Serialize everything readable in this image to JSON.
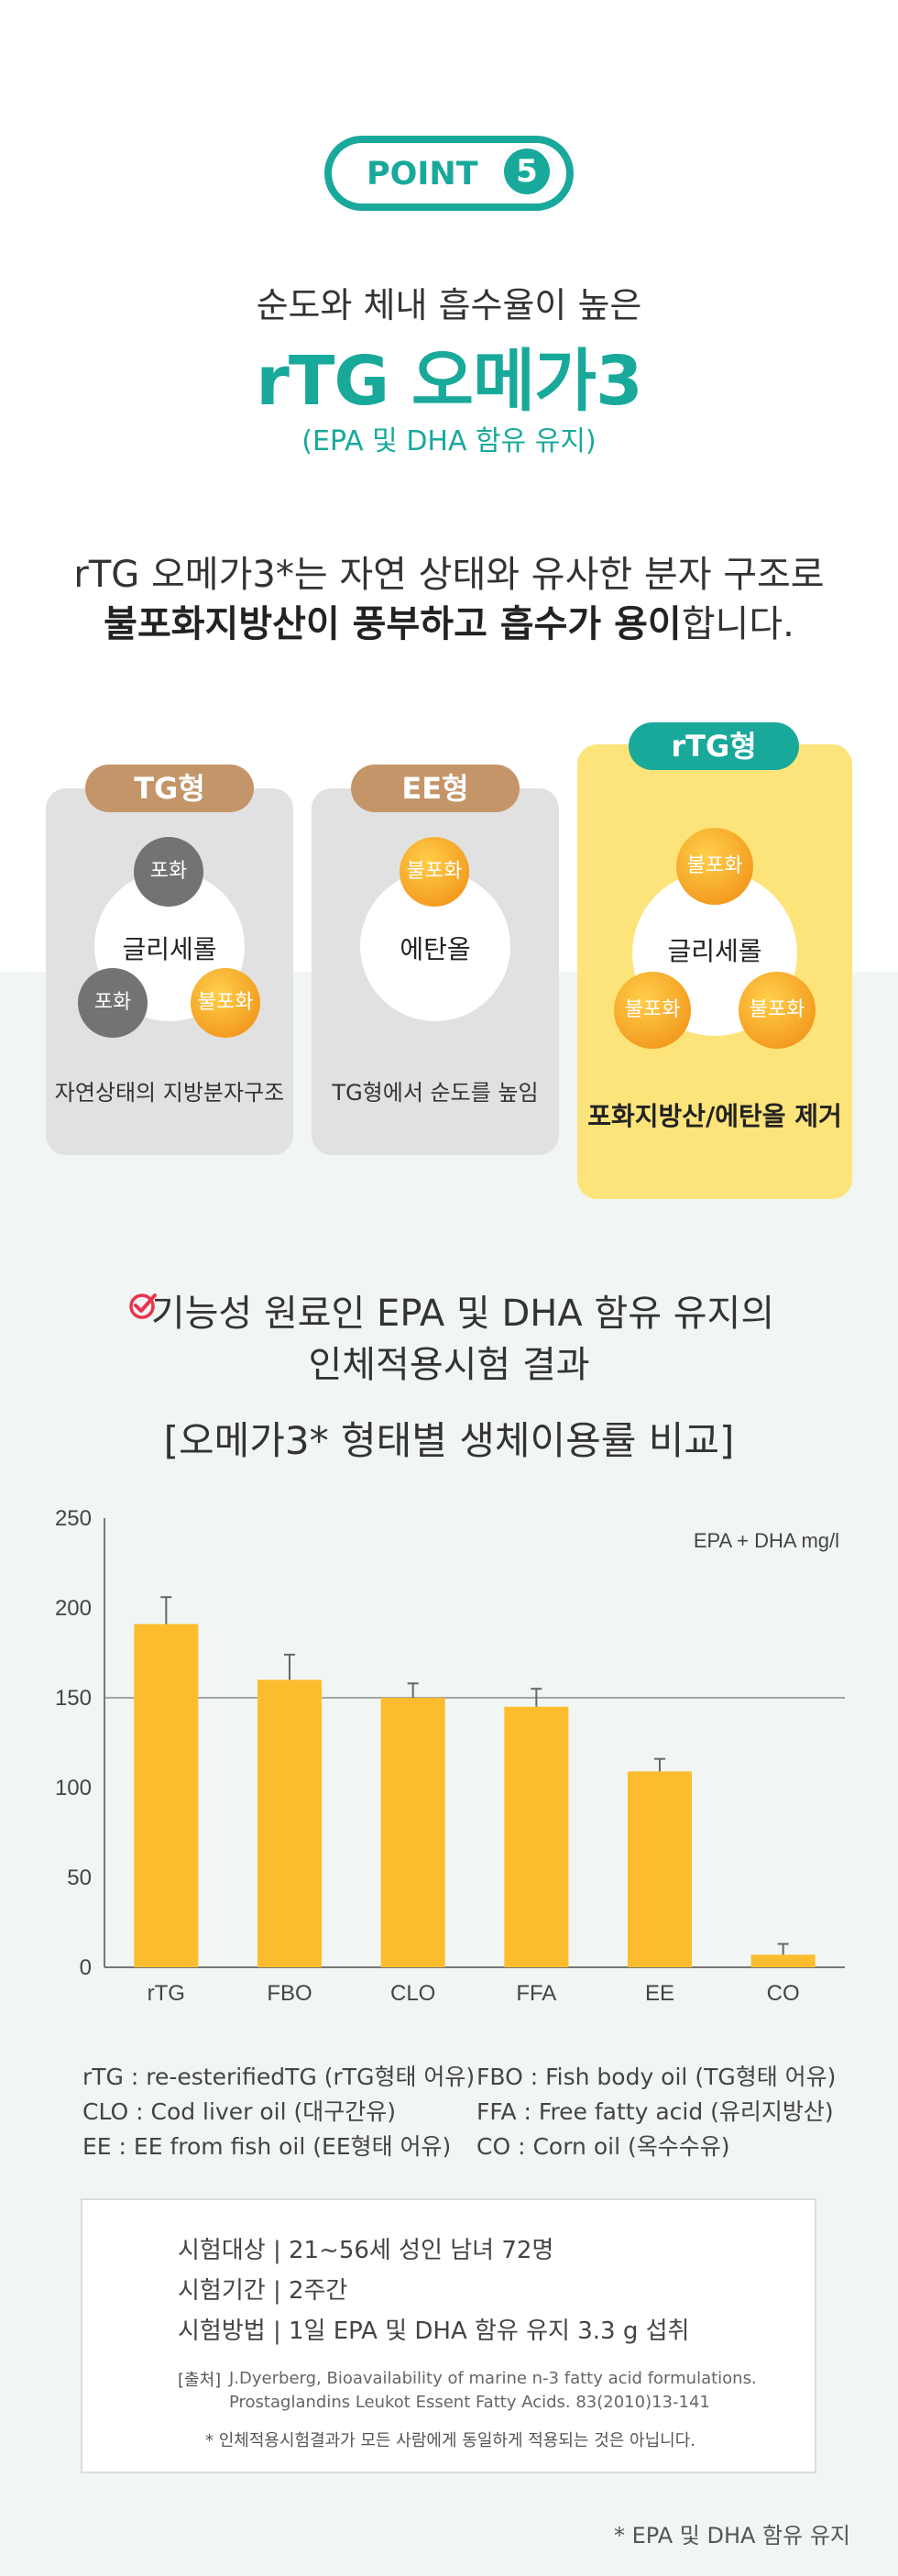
{
  "point": {
    "label": "POINT",
    "number": "5"
  },
  "header": {
    "subtitle": "순도와 체내 흡수율이 높은",
    "title": "rTG 오메가3",
    "paren": "(EPA 및 DHA 함유 유지)"
  },
  "description": {
    "line1": "rTG 오메가3*는 자연 상태와 유사한 분자 구조로",
    "line2_bold": "불포화지방산이 풍부하고 흡수가 용이",
    "line2_rest": "합니다."
  },
  "cards": {
    "tg": {
      "pill": "TG형",
      "center": "글리세롤",
      "mol_top": "포화",
      "mol_left": "포화",
      "mol_right": "불포화",
      "caption": "자연상태의 지방분자구조"
    },
    "ee": {
      "pill": "EE형",
      "center": "에탄올",
      "mol_top": "불포화",
      "caption": "TG형에서 순도를 높임"
    },
    "rtg": {
      "pill": "rTG형",
      "center": "글리세롤",
      "mol_top": "불포화",
      "mol_left": "불포화",
      "mol_right": "불포화",
      "caption": "포화지방산/에탄올 제거"
    }
  },
  "section2": {
    "line1": "기능성 원료인 EPA 및 DHA 함유 유지의",
    "line2": "인체적용시험 결과",
    "chart_heading": "[오메가3* 형태별 생체이용률 비교]"
  },
  "chart_data": {
    "type": "bar",
    "categories": [
      "rTG",
      "FBO",
      "CLO",
      "FFA",
      "EE",
      "CO"
    ],
    "values": [
      191,
      160,
      150,
      145,
      109,
      7
    ],
    "errors": [
      15,
      14,
      8,
      10,
      7,
      6
    ],
    "ylim": [
      0,
      250
    ],
    "yticks": [
      0,
      50,
      100,
      150,
      200,
      250
    ],
    "unit_label": "EPA + DHA mg/l",
    "bar_color": "#fbbd2d",
    "axis_color": "#777777",
    "gridline_at": 150
  },
  "legend": {
    "rtg": "rTG : re-esterifiedTG (rTG형태 어유)",
    "fbo": "FBO : Fish body oil (TG형태 어유)",
    "clo": "CLO : Cod liver oil (대구간유)",
    "ffa": "FFA : Free fatty acid (유리지방산)",
    "ee": "EE : EE from fish oil (EE형태 어유)",
    "co": "CO : Corn oil (옥수수유)"
  },
  "trial": {
    "subject": "시험대상 | 21~56세 성인 남녀 72명",
    "period": "시험기간 | 2주간",
    "method": "시험방법 | 1일 EPA 및 DHA 함유 유지 3.3 g 섭취",
    "ref_tag": "[출처]",
    "ref_line1": "J.Dyerberg, Bioavailability of marine n-3 fatty acid formulations.",
    "ref_line2": "Prostaglandins Leukot Essent Fatty Acids. 83(2010)13-141",
    "note": "* 인체적용시험결과가 모든 사람에게 동일하게 적용되는 것은 아닙니다."
  },
  "footnote": "* EPA 및 DHA 함유 유지",
  "colors": {
    "teal": "#18a99b",
    "tan": "#c49568",
    "yellow": "#fde47a",
    "check": "#e8344e"
  }
}
